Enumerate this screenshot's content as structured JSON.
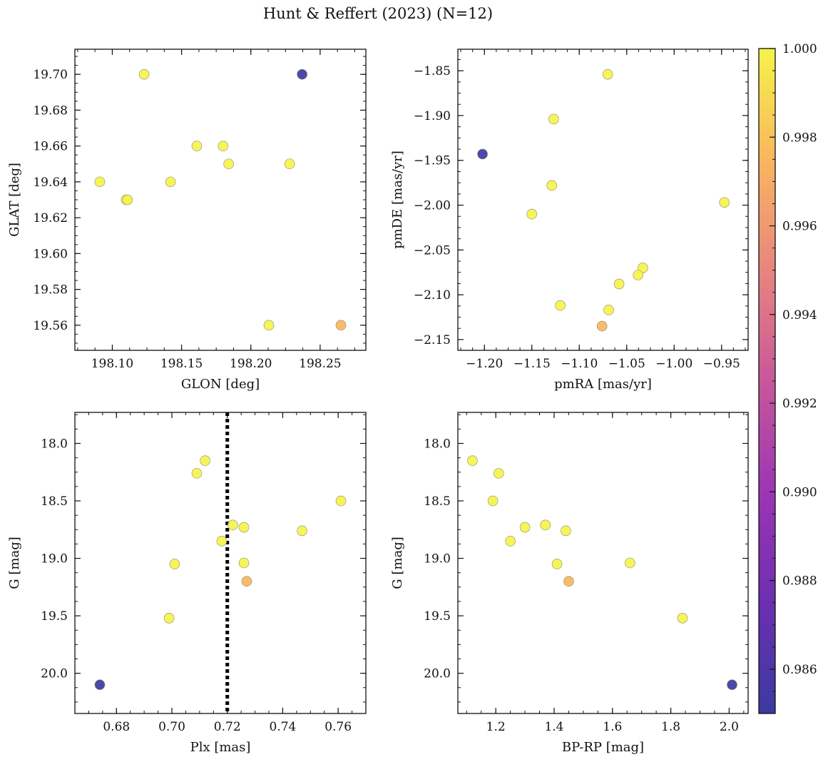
{
  "figure": {
    "title": "Hunt & Reffert (2023) (N=12)"
  },
  "colormap": {
    "name": "plasma",
    "min": 0.985,
    "max": 1.0,
    "ticks": [
      0.986,
      0.988,
      0.99,
      0.992,
      0.994,
      0.996,
      0.998,
      1.0
    ],
    "tick_labels": [
      "0.986",
      "0.988",
      "0.990",
      "0.992",
      "0.994",
      "0.996",
      "0.998",
      "1.000"
    ]
  },
  "chart_data": [
    {
      "type": "scatter",
      "xlabel": "GLON [deg]",
      "ylabel": "GLAT [deg]",
      "xlim": [
        198.073,
        198.283
      ],
      "ylim": [
        19.546,
        19.714
      ],
      "xticks": [
        198.1,
        198.15,
        198.2,
        198.25
      ],
      "xtick_labels": [
        "198.10",
        "198.15",
        "198.20",
        "198.25"
      ],
      "yticks": [
        19.56,
        19.58,
        19.6,
        19.62,
        19.64,
        19.66,
        19.68,
        19.7
      ],
      "ytick_labels": [
        "19.56",
        "19.58",
        "19.60",
        "19.62",
        "19.64",
        "19.66",
        "19.68",
        "19.70"
      ],
      "invert_y": false,
      "vline": null,
      "points": [
        {
          "x": 198.123,
          "y": 19.7,
          "c": 1.0
        },
        {
          "x": 198.237,
          "y": 19.7,
          "c": 0.985
        },
        {
          "x": 198.161,
          "y": 19.66,
          "c": 1.0
        },
        {
          "x": 198.18,
          "y": 19.66,
          "c": 1.0
        },
        {
          "x": 198.184,
          "y": 19.65,
          "c": 1.0
        },
        {
          "x": 198.228,
          "y": 19.65,
          "c": 1.0
        },
        {
          "x": 198.091,
          "y": 19.64,
          "c": 1.0
        },
        {
          "x": 198.142,
          "y": 19.64,
          "c": 1.0
        },
        {
          "x": 198.11,
          "y": 19.63,
          "c": 1.0
        },
        {
          "x": 198.111,
          "y": 19.63,
          "c": 1.0
        },
        {
          "x": 198.213,
          "y": 19.56,
          "c": 1.0
        },
        {
          "x": 198.265,
          "y": 19.56,
          "c": 0.9975
        }
      ]
    },
    {
      "type": "scatter",
      "xlabel": "pmRA [mas/yr]",
      "ylabel": "pmDE [mas/yr]",
      "xlim": [
        -1.228,
        -0.922
      ],
      "ylim": [
        -2.162,
        -1.826
      ],
      "xticks": [
        -1.2,
        -1.15,
        -1.1,
        -1.05,
        -1.0,
        -0.95
      ],
      "xtick_labels": [
        "−1.20",
        "−1.15",
        "−1.10",
        "−1.05",
        "−1.00",
        "−0.95"
      ],
      "yticks": [
        -2.15,
        -2.1,
        -2.05,
        -2.0,
        -1.95,
        -1.9,
        -1.85
      ],
      "ytick_labels": [
        "−2.15",
        "−2.10",
        "−2.05",
        "−2.00",
        "−1.95",
        "−1.90",
        "−1.85"
      ],
      "invert_y": false,
      "vline": null,
      "points": [
        {
          "x": -1.07,
          "y": -1.854,
          "c": 1.0
        },
        {
          "x": -1.127,
          "y": -1.904,
          "c": 1.0
        },
        {
          "x": -1.202,
          "y": -1.943,
          "c": 0.985
        },
        {
          "x": -1.129,
          "y": -1.978,
          "c": 1.0
        },
        {
          "x": -0.947,
          "y": -1.997,
          "c": 1.0
        },
        {
          "x": -1.15,
          "y": -2.01,
          "c": 1.0
        },
        {
          "x": -1.033,
          "y": -2.07,
          "c": 1.0
        },
        {
          "x": -1.038,
          "y": -2.078,
          "c": 1.0
        },
        {
          "x": -1.058,
          "y": -2.088,
          "c": 1.0
        },
        {
          "x": -1.12,
          "y": -2.112,
          "c": 1.0
        },
        {
          "x": -1.069,
          "y": -2.117,
          "c": 1.0
        },
        {
          "x": -1.076,
          "y": -2.135,
          "c": 0.9975
        }
      ]
    },
    {
      "type": "scatter",
      "xlabel": "Plx [mas]",
      "ylabel": "G [mag]",
      "xlim": [
        0.665,
        0.77
      ],
      "ylim": [
        17.73,
        20.35
      ],
      "xticks": [
        0.68,
        0.7,
        0.72,
        0.74,
        0.76
      ],
      "xtick_labels": [
        "0.68",
        "0.70",
        "0.72",
        "0.74",
        "0.76"
      ],
      "yticks": [
        18.0,
        18.5,
        19.0,
        19.5,
        20.0
      ],
      "ytick_labels": [
        "18.0",
        "18.5",
        "19.0",
        "19.5",
        "20.0"
      ],
      "invert_y": true,
      "vline": 0.72,
      "points": [
        {
          "x": 0.712,
          "y": 18.15,
          "c": 1.0
        },
        {
          "x": 0.709,
          "y": 18.26,
          "c": 1.0
        },
        {
          "x": 0.761,
          "y": 18.5,
          "c": 1.0
        },
        {
          "x": 0.722,
          "y": 18.71,
          "c": 1.0
        },
        {
          "x": 0.726,
          "y": 18.73,
          "c": 1.0
        },
        {
          "x": 0.747,
          "y": 18.76,
          "c": 1.0
        },
        {
          "x": 0.718,
          "y": 18.85,
          "c": 1.0
        },
        {
          "x": 0.701,
          "y": 19.05,
          "c": 1.0
        },
        {
          "x": 0.726,
          "y": 19.04,
          "c": 1.0
        },
        {
          "x": 0.727,
          "y": 19.2,
          "c": 0.9975
        },
        {
          "x": 0.699,
          "y": 19.52,
          "c": 1.0
        },
        {
          "x": 0.674,
          "y": 20.1,
          "c": 0.985
        }
      ]
    },
    {
      "type": "scatter",
      "xlabel": "BP-RP [mag]",
      "ylabel": "G [mag]",
      "xlim": [
        1.07,
        2.065
      ],
      "ylim": [
        17.73,
        20.35
      ],
      "xticks": [
        1.2,
        1.4,
        1.6,
        1.8,
        2.0
      ],
      "xtick_labels": [
        "1.2",
        "1.4",
        "1.6",
        "1.8",
        "2.0"
      ],
      "yticks": [
        18.0,
        18.5,
        19.0,
        19.5,
        20.0
      ],
      "ytick_labels": [
        "18.0",
        "18.5",
        "19.0",
        "19.5",
        "20.0"
      ],
      "invert_y": true,
      "vline": null,
      "points": [
        {
          "x": 1.12,
          "y": 18.15,
          "c": 1.0
        },
        {
          "x": 1.21,
          "y": 18.26,
          "c": 1.0
        },
        {
          "x": 1.19,
          "y": 18.5,
          "c": 1.0
        },
        {
          "x": 1.37,
          "y": 18.71,
          "c": 1.0
        },
        {
          "x": 1.3,
          "y": 18.73,
          "c": 1.0
        },
        {
          "x": 1.44,
          "y": 18.76,
          "c": 1.0
        },
        {
          "x": 1.25,
          "y": 18.85,
          "c": 1.0
        },
        {
          "x": 1.41,
          "y": 19.05,
          "c": 1.0
        },
        {
          "x": 1.66,
          "y": 19.04,
          "c": 1.0
        },
        {
          "x": 1.45,
          "y": 19.2,
          "c": 0.9975
        },
        {
          "x": 1.84,
          "y": 19.52,
          "c": 1.0
        },
        {
          "x": 2.01,
          "y": 20.1,
          "c": 0.985
        }
      ]
    }
  ]
}
